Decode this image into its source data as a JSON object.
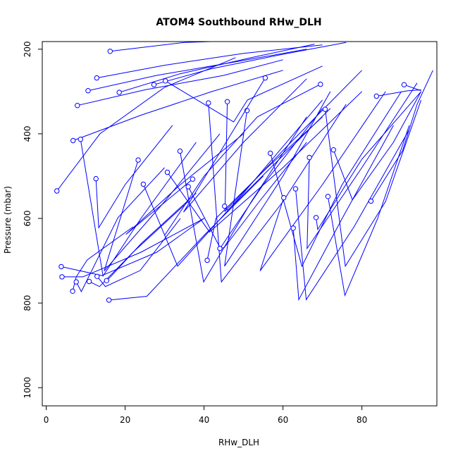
{
  "chart_data": {
    "type": "line",
    "title": "ATOM4 Southbound RHw_DLH",
    "xlabel": "RHw_DLH",
    "ylabel": "Pressure (mbar)",
    "xlim": [
      -1,
      99
    ],
    "ylim": [
      1043,
      182
    ],
    "y_reversed": true,
    "x_ticks": [
      0,
      20,
      40,
      60,
      80
    ],
    "y_ticks": [
      200,
      400,
      600,
      800,
      1000
    ],
    "grid": false,
    "series_color": "#0000ff",
    "marker": "open-circle",
    "profiles": [
      {
        "x": [
          16.2,
          35,
          55,
          75
        ],
        "y": [
          205,
          184,
          178,
          170
        ]
      },
      {
        "x": [
          12.8,
          30,
          50,
          70
        ],
        "y": [
          268,
          238,
          210,
          190
        ]
      },
      {
        "x": [
          10.6,
          28,
          48,
          66
        ],
        "y": [
          298,
          262,
          230,
          200
        ]
      },
      {
        "x": [
          7.9,
          25,
          45,
          60
        ],
        "y": [
          333,
          296,
          262,
          225
        ]
      },
      {
        "x": [
          18.5,
          34,
          52,
          68
        ],
        "y": [
          302,
          258,
          220,
          188
        ]
      },
      {
        "x": [
          27.3,
          42,
          60,
          76
        ],
        "y": [
          284,
          246,
          212,
          184
        ]
      },
      {
        "x": [
          30.2,
          47.5,
          51,
          70
        ],
        "y": [
          275,
          372,
          320,
          240
        ]
      },
      {
        "x": [
          6.8,
          24,
          42,
          60
        ],
        "y": [
          416,
          356,
          300,
          250
        ]
      },
      {
        "x": [
          8.7,
          14.4,
          24,
          38
        ],
        "y": [
          413,
          736,
          600,
          420
        ]
      },
      {
        "x": [
          2.7,
          13.6,
          30,
          48
        ],
        "y": [
          535,
          400,
          290,
          220
        ]
      },
      {
        "x": [
          12.6,
          13.3,
          20,
          32
        ],
        "y": [
          506,
          622,
          520,
          380
        ]
      },
      {
        "x": [
          23.3,
          14.7,
          30,
          44
        ],
        "y": [
          462,
          724,
          560,
          400
        ]
      },
      {
        "x": [
          24.6,
          33.3,
          50,
          70
        ],
        "y": [
          519,
          713,
          540,
          320
        ]
      },
      {
        "x": [
          30.7,
          41.4,
          60,
          80
        ],
        "y": [
          491,
          632,
          480,
          300
        ]
      },
      {
        "x": [
          33.9,
          39.9,
          52,
          66
        ],
        "y": [
          441,
          750,
          560,
          360
        ]
      },
      {
        "x": [
          36.0,
          44.1,
          55,
          70
        ],
        "y": [
          525,
          670,
          520,
          340
        ]
      },
      {
        "x": [
          37.1,
          20.2,
          34,
          50
        ],
        "y": [
          507,
          638,
          520,
          400
        ]
      },
      {
        "x": [
          41.1,
          44.4,
          60,
          76
        ],
        "y": [
          327,
          750,
          560,
          330
        ]
      },
      {
        "x": [
          45.9,
          45.3,
          62,
          80
        ],
        "y": [
          324,
          583,
          420,
          250
        ]
      },
      {
        "x": [
          50.9,
          45.2,
          60,
          72
        ],
        "y": [
          345,
          713,
          500,
          300
        ]
      },
      {
        "x": [
          55.5,
          34.8,
          50,
          66
        ],
        "y": [
          268,
          585,
          420,
          270
        ]
      },
      {
        "x": [
          56.8,
          64.8,
          75,
          90
        ],
        "y": [
          446,
          713,
          520,
          300
        ]
      },
      {
        "x": [
          60.2,
          54.2,
          70,
          86
        ],
        "y": [
          551,
          724,
          520,
          300
        ]
      },
      {
        "x": [
          62.6,
          64.0,
          75,
          88
        ],
        "y": [
          623,
          792,
          600,
          380
        ]
      },
      {
        "x": [
          63.2,
          65.9,
          78,
          92
        ],
        "y": [
          530,
          792,
          620,
          390
        ]
      },
      {
        "x": [
          66.7,
          66.1,
          80,
          94
        ],
        "y": [
          456,
          671,
          480,
          280
        ]
      },
      {
        "x": [
          68.4,
          68.8,
          80,
          95
        ],
        "y": [
          598,
          626,
          460,
          300
        ]
      },
      {
        "x": [
          69.5,
          53.5,
          40,
          30
        ],
        "y": [
          283,
          360,
          500,
          640
        ]
      },
      {
        "x": [
          70.7,
          75.8,
          86,
          95
        ],
        "y": [
          342,
          713,
          560,
          320
        ]
      },
      {
        "x": [
          71.4,
          75.7,
          84,
          92
        ],
        "y": [
          548,
          782,
          600,
          380
        ]
      },
      {
        "x": [
          72.8,
          77.6,
          88,
          95
        ],
        "y": [
          438,
          556,
          420,
          300
        ]
      },
      {
        "x": [
          82.3,
          90.3,
          94,
          98
        ],
        "y": [
          559,
          440,
          330,
          250
        ]
      },
      {
        "x": [
          83.7,
          91.7,
          95
        ],
        "y": [
          311,
          298,
          296
        ]
      },
      {
        "x": [
          90.7,
          95.0
        ],
        "y": [
          284,
          298
        ]
      },
      {
        "x": [
          3.8,
          14.1,
          28,
          40
        ],
        "y": [
          714,
          735,
          680,
          600
        ]
      },
      {
        "x": [
          4.0,
          9.3,
          24,
          40
        ],
        "y": [
          738,
          738,
          680,
          600
        ]
      },
      {
        "x": [
          6.7,
          7.6,
          10.4,
          22
        ],
        "y": [
          772,
          738,
          698,
          620
        ]
      },
      {
        "x": [
          7.6,
          8.9,
          18.2,
          30
        ],
        "y": [
          750,
          773,
          598,
          480
        ]
      },
      {
        "x": [
          10.9,
          13.5,
          22,
          36
        ],
        "y": [
          749,
          761,
          680,
          560
        ]
      },
      {
        "x": [
          12.9,
          15.0,
          23.8,
          34
        ],
        "y": [
          737,
          761,
          723,
          600
        ]
      },
      {
        "x": [
          15.3,
          16.4,
          24,
          38
        ],
        "y": [
          747,
          737,
          660,
          540
        ]
      },
      {
        "x": [
          15.9,
          25.5,
          40,
          55
        ],
        "y": [
          793,
          784,
          640,
          500
        ]
      },
      {
        "x": [
          44.0,
          45.1,
          54,
          66
        ],
        "y": [
          671,
          669,
          560,
          420
        ]
      },
      {
        "x": [
          40.8,
          43.0,
          56,
          70
        ],
        "y": [
          699,
          600,
          480,
          360
        ]
      },
      {
        "x": [
          45.2,
          46.0,
          58,
          72
        ],
        "y": [
          571,
          581,
          470,
          340
        ]
      }
    ]
  }
}
